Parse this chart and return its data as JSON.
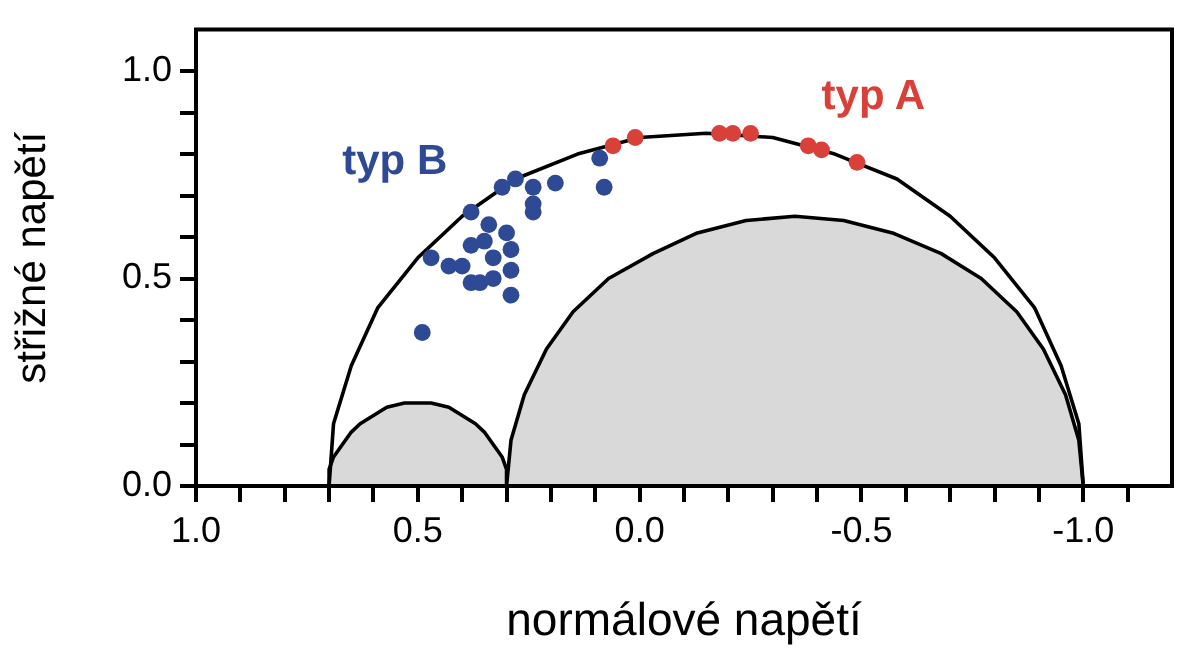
{
  "chart_data": {
    "type": "scatter",
    "xlabel": "normálové napětí",
    "ylabel": "střižné napětí",
    "xlim": [
      1.0,
      -1.2
    ],
    "ylim": [
      0,
      1.1
    ],
    "xticks": [
      {
        "value": 1.0,
        "label": "1.0"
      },
      {
        "value": 0.9,
        "label": null
      },
      {
        "value": 0.8,
        "label": null
      },
      {
        "value": 0.7,
        "label": null
      },
      {
        "value": 0.6,
        "label": null
      },
      {
        "value": 0.5,
        "label": "0.5"
      },
      {
        "value": 0.4,
        "label": null
      },
      {
        "value": 0.3,
        "label": null
      },
      {
        "value": 0.2,
        "label": null
      },
      {
        "value": 0.1,
        "label": null
      },
      {
        "value": 0,
        "label": "0.0"
      },
      {
        "value": -0.1,
        "label": null
      },
      {
        "value": -0.2,
        "label": null
      },
      {
        "value": -0.3,
        "label": null
      },
      {
        "value": -0.4,
        "label": null
      },
      {
        "value": -0.5,
        "label": "-0.5"
      },
      {
        "value": -0.6,
        "label": null
      },
      {
        "value": -0.7,
        "label": null
      },
      {
        "value": -0.8,
        "label": null
      },
      {
        "value": -0.9,
        "label": null
      },
      {
        "value": -1.0,
        "label": "-1.0"
      },
      {
        "value": -1.1,
        "label": null
      }
    ],
    "yticks": [
      {
        "value": 0,
        "label": "0.0"
      },
      {
        "value": 0.1,
        "label": null
      },
      {
        "value": 0.2,
        "label": null
      },
      {
        "value": 0.3,
        "label": null
      },
      {
        "value": 0.4,
        "label": null
      },
      {
        "value": 0.5,
        "label": "0.5"
      },
      {
        "value": 0.6,
        "label": null
      },
      {
        "value": 0.7,
        "label": null
      },
      {
        "value": 0.8,
        "label": null
      },
      {
        "value": 0.9,
        "label": null
      },
      {
        "value": 1.0,
        "label": "1.0"
      }
    ],
    "grid": false,
    "legend": false,
    "marker": "circle",
    "series": [
      {
        "type": "area",
        "color": "#d9d9d9",
        "marker": "none",
        "x": [
          -1.0,
          -0.99,
          -0.96,
          -0.91,
          -0.85,
          -0.77,
          -0.68,
          -0.57,
          -0.46,
          -0.35,
          -0.24,
          -0.13,
          -0.03,
          0.07,
          0.15,
          0.21,
          0.26,
          0.29,
          0.3
        ],
        "values": [
          0,
          0.11,
          0.22,
          0.33,
          0.42,
          0.5,
          0.56,
          0.61,
          0.64,
          0.65,
          0.64,
          0.61,
          0.56,
          0.5,
          0.42,
          0.33,
          0.22,
          0.11,
          0
        ]
      },
      {
        "type": "area",
        "color": "#d9d9d9",
        "marker": "none",
        "x": [
          0.3,
          0.3,
          0.31,
          0.33,
          0.35,
          0.37,
          0.4,
          0.43,
          0.47,
          0.5,
          0.53,
          0.57,
          0.6,
          0.63,
          0.65,
          0.67,
          0.69,
          0.7,
          0.7
        ],
        "values": [
          0,
          0.04,
          0.07,
          0.1,
          0.13,
          0.15,
          0.17,
          0.19,
          0.2,
          0.2,
          0.2,
          0.19,
          0.17,
          0.15,
          0.13,
          0.1,
          0.07,
          0.04,
          0
        ]
      },
      {
        "type": "line",
        "color": "#000000",
        "marker": "none",
        "x": [
          -1.0,
          -0.99,
          -0.95,
          -0.89,
          -0.8,
          -0.7,
          -0.58,
          -0.44,
          -0.3,
          -0.15,
          0.0,
          0.14,
          0.28,
          0.4,
          0.5,
          0.59,
          0.65,
          0.69,
          0.7
        ],
        "values": [
          0,
          0.15,
          0.29,
          0.43,
          0.55,
          0.65,
          0.74,
          0.8,
          0.84,
          0.85,
          0.84,
          0.8,
          0.74,
          0.65,
          0.55,
          0.43,
          0.29,
          0.15,
          0
        ]
      },
      {
        "type": "scatter",
        "name": "typ B",
        "color": "#2e4a94",
        "x": [
          0.49,
          0.47,
          0.43,
          0.4,
          0.38,
          0.38,
          0.38,
          0.36,
          0.34,
          0.35,
          0.33,
          0.33,
          0.3,
          0.29,
          0.29,
          0.29,
          0.31,
          0.28,
          0.24,
          0.24,
          0.24,
          0.19,
          0.09,
          0.08
        ],
        "values": [
          0.37,
          0.55,
          0.53,
          0.53,
          0.66,
          0.58,
          0.49,
          0.49,
          0.63,
          0.59,
          0.5,
          0.55,
          0.61,
          0.57,
          0.52,
          0.46,
          0.72,
          0.74,
          0.72,
          0.68,
          0.66,
          0.73,
          0.79,
          0.72
        ]
      },
      {
        "type": "scatter",
        "name": "typ A",
        "color": "#d9403a",
        "x": [
          0.06,
          0.01,
          -0.18,
          -0.21,
          -0.25,
          -0.38,
          -0.41,
          -0.49
        ],
        "values": [
          0.82,
          0.84,
          0.85,
          0.85,
          0.85,
          0.82,
          0.81,
          0.78
        ]
      }
    ]
  }
}
